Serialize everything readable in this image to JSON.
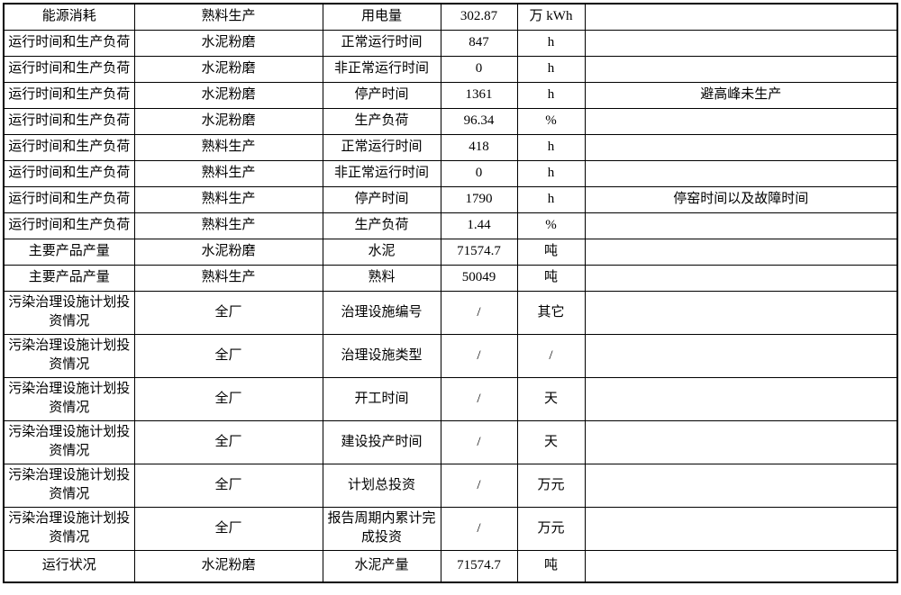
{
  "colors": {
    "border": "#000000",
    "text": "#000000",
    "background": "#ffffff"
  },
  "table": {
    "fields": [
      "category",
      "group",
      "item",
      "value",
      "unit",
      "remark"
    ],
    "rows": [
      {
        "category": "能源消耗",
        "group": "熟料生产",
        "item": "用电量",
        "value": "302.87",
        "unit": "万 kWh",
        "remark": ""
      },
      {
        "category": "运行时间和生产负荷",
        "group": "水泥粉磨",
        "item": "正常运行时间",
        "value": "847",
        "unit": "h",
        "remark": ""
      },
      {
        "category": "运行时间和生产负荷",
        "group": "水泥粉磨",
        "item": "非正常运行时间",
        "value": "0",
        "unit": "h",
        "remark": ""
      },
      {
        "category": "运行时间和生产负荷",
        "group": "水泥粉磨",
        "item": "停产时间",
        "value": "1361",
        "unit": "h",
        "remark": "避高峰未生产"
      },
      {
        "category": "运行时间和生产负荷",
        "group": "水泥粉磨",
        "item": "生产负荷",
        "value": "96.34",
        "unit": "%",
        "remark": ""
      },
      {
        "category": "运行时间和生产负荷",
        "group": "熟料生产",
        "item": "正常运行时间",
        "value": "418",
        "unit": "h",
        "remark": ""
      },
      {
        "category": "运行时间和生产负荷",
        "group": "熟料生产",
        "item": "非正常运行时间",
        "value": "0",
        "unit": "h",
        "remark": ""
      },
      {
        "category": "运行时间和生产负荷",
        "group": "熟料生产",
        "item": "停产时间",
        "value": "1790",
        "unit": "h",
        "remark": "停窑时间以及故障时间"
      },
      {
        "category": "运行时间和生产负荷",
        "group": "熟料生产",
        "item": "生产负荷",
        "value": "1.44",
        "unit": "%",
        "remark": ""
      },
      {
        "category": "主要产品产量",
        "group": "水泥粉磨",
        "item": "水泥",
        "value": "71574.7",
        "unit": "吨",
        "remark": ""
      },
      {
        "category": "主要产品产量",
        "group": "熟料生产",
        "item": "熟料",
        "value": "50049",
        "unit": "吨",
        "remark": ""
      },
      {
        "category": "污染治理设施计划投资情况",
        "group": "全厂",
        "item": "治理设施编号",
        "value": "/",
        "unit": "其它",
        "remark": ""
      },
      {
        "category": "污染治理设施计划投资情况",
        "group": "全厂",
        "item": "治理设施类型",
        "value": "/",
        "unit": "/",
        "remark": ""
      },
      {
        "category": "污染治理设施计划投资情况",
        "group": "全厂",
        "item": "开工时间",
        "value": "/",
        "unit": "天",
        "remark": ""
      },
      {
        "category": "污染治理设施计划投资情况",
        "group": "全厂",
        "item": "建设投产时间",
        "value": "/",
        "unit": "天",
        "remark": ""
      },
      {
        "category": "污染治理设施计划投资情况",
        "group": "全厂",
        "item": "计划总投资",
        "value": "/",
        "unit": "万元",
        "remark": ""
      },
      {
        "category": "污染治理设施计划投资情况",
        "group": "全厂",
        "item": "报告周期内累计完成投资",
        "value": "/",
        "unit": "万元",
        "remark": ""
      },
      {
        "category": "运行状况",
        "group": "水泥粉磨",
        "item": "水泥产量",
        "value": "71574.7",
        "unit": "吨",
        "remark": ""
      }
    ]
  }
}
